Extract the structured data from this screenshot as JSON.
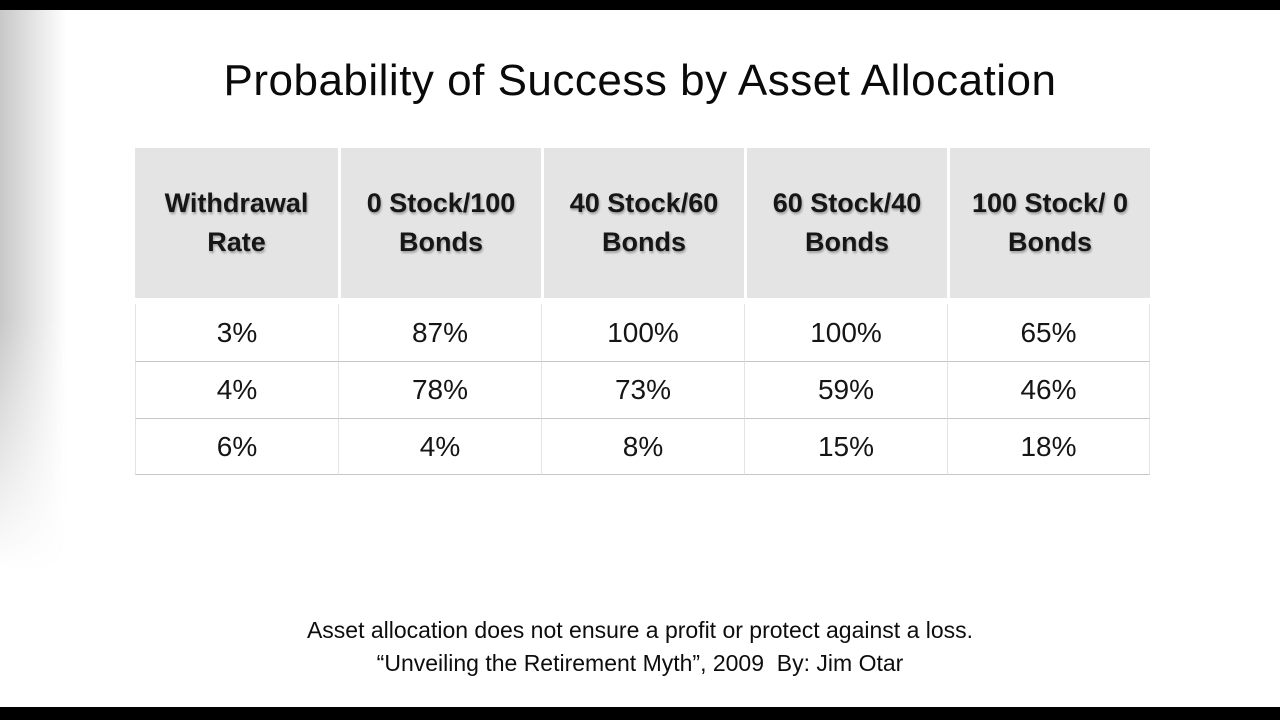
{
  "slide": {
    "title": "Probability of Success by Asset Allocation",
    "footer_line1": "Asset allocation does not ensure a profit or protect against a loss.",
    "footer_line2": "“Unveiling the Retirement Myth”, 2009  By: Jim Otar"
  },
  "table": {
    "headers": [
      "Withdrawal Rate",
      "0 Stock/100 Bonds",
      "40 Stock/60 Bonds",
      "60 Stock/40 Bonds",
      "100 Stock/ 0 Bonds"
    ],
    "rows": [
      [
        "3%",
        "87%",
        "100%",
        "100%",
        "65%"
      ],
      [
        "4%",
        "78%",
        "73%",
        "59%",
        "46%"
      ],
      [
        "6%",
        "4%",
        "8%",
        "15%",
        "18%"
      ]
    ]
  },
  "chart_data": {
    "type": "table",
    "title": "Probability of Success by Asset Allocation",
    "columns": [
      "Withdrawal Rate",
      "0 Stock/100 Bonds",
      "40 Stock/60 Bonds",
      "60 Stock/40 Bonds",
      "100 Stock/ 0 Bonds"
    ],
    "rows": [
      [
        "3%",
        "87%",
        "100%",
        "100%",
        "65%"
      ],
      [
        "4%",
        "78%",
        "73%",
        "59%",
        "46%"
      ],
      [
        "6%",
        "4%",
        "8%",
        "15%",
        "18%"
      ]
    ],
    "withdrawal_rates_pct": [
      3,
      4,
      6
    ],
    "series": [
      {
        "name": "0 Stock/100 Bonds",
        "success_pct": [
          87,
          78,
          4
        ]
      },
      {
        "name": "40 Stock/60 Bonds",
        "success_pct": [
          100,
          73,
          8
        ]
      },
      {
        "name": "60 Stock/40 Bonds",
        "success_pct": [
          100,
          59,
          15
        ]
      },
      {
        "name": "100 Stock/ 0 Bonds",
        "success_pct": [
          65,
          46,
          18
        ]
      }
    ],
    "annotations": [
      "Asset allocation does not ensure a profit or protect against a loss.",
      "“Unveiling the Retirement Myth”, 2009  By: Jim Otar"
    ]
  }
}
